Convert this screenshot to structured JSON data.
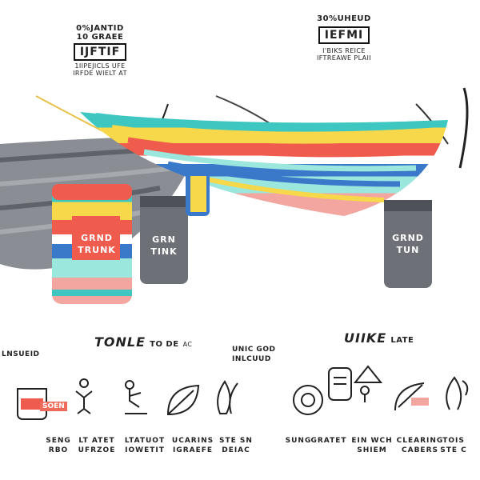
{
  "left_badge": {
    "line1": "0%JANTID",
    "line2": "10 GRAEE",
    "box_text": "IJFTIF",
    "line3": "1IIPEJICLS UFE",
    "line4": "IRFDE WIELT AT"
  },
  "right_badge": {
    "line1": "30%UHEUD",
    "box_text": "IEFMI",
    "line2": "I'BIKS REICE",
    "line3": "IFTREAWE PLAII"
  },
  "products": {
    "left_pouch_brand": "GRND\nTRUNK",
    "mid_pouch_brand": "GRN\nTINK",
    "right_pouch_brand": "GRND\nTUN"
  },
  "sections": {
    "left_title": "TONLE",
    "left_title_suffix": "TO DE",
    "left_title_tag": "AC",
    "left_label_a": "LNSUEID",
    "left_label_b": "UNIC GOD",
    "left_label_b2": "INLCUUD",
    "right_title": "UIIKE",
    "right_title_suffix": "LATE"
  },
  "left_icons": [
    {
      "name": "sack-icon",
      "label1": "SENG",
      "label2": "RBO"
    },
    {
      "name": "hammock-person-icon",
      "label1": "LT ATET",
      "label2": "UFRZOE"
    },
    {
      "name": "person-rest-icon",
      "label1": "LTATUOT",
      "label2": "IOWETIT"
    },
    {
      "name": "leaf-icon",
      "label1": "UCARINS",
      "label2": "IGRAEFE"
    },
    {
      "name": "strap-icon",
      "label1": "STE SN",
      "label2": "DEIAC"
    }
  ],
  "right_icons": [
    {
      "name": "ring-icon",
      "label1": "SUNG",
      "label2": ""
    },
    {
      "name": "backpack-icon",
      "label1": "GRATET",
      "label2": ""
    },
    {
      "name": "hiker-icon",
      "label1": "EIN WCH",
      "label2": "SHIEM"
    },
    {
      "name": "carabiner-icon",
      "label1": "CLEARING",
      "label2": "CABERS"
    },
    {
      "name": "rope-icon",
      "label1": "TOIS",
      "label2": "STE C"
    }
  ],
  "colors": {
    "red": "#ef5b4c",
    "yellow": "#f7d84a",
    "teal": "#3ec7c0",
    "blue": "#3a78c9",
    "mint": "#9be6dd",
    "pink": "#f3a6a0",
    "gray": "#7c7f86",
    "dark": "#3b3f45"
  }
}
